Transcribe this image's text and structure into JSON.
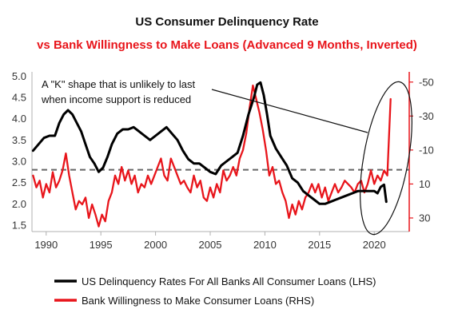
{
  "colors": {
    "lhs": "#000000",
    "rhs": "#e8151b",
    "reference": "#666666"
  },
  "chart_data": {
    "type": "line",
    "title": "US Consumer Delinquency Rate",
    "subtitle": "vs Bank Willingness to Make Loans (Advanced 9 Months, Inverted)",
    "x_ticks": [
      "1990",
      "1995",
      "2000",
      "2005",
      "2010",
      "2015",
      "2020"
    ],
    "xlim": [
      1988.7,
      2023.2
    ],
    "y_left": {
      "ticks": [
        "5.0",
        "4.5",
        "4.0",
        "3.5",
        "3.0",
        "2.5",
        "2.0",
        "1.5"
      ],
      "lim": [
        1.35,
        5.1
      ]
    },
    "y_right": {
      "ticks": [
        "-50",
        "-30",
        "-10",
        "10",
        "30"
      ],
      "lim": [
        -56,
        38
      ],
      "inverted": true
    },
    "reference_line_lhs": 2.8,
    "annotation": "A \"K\" shape that is unlikely to last when income support is reduced",
    "annotation_lines": [
      "A \"K\" shape that is unlikely to last",
      "when income support is reduced"
    ],
    "series": [
      {
        "name": "US Delinquency Rates For All Banks All Consumer Loans (LHS)",
        "axis": "left",
        "x": [
          1988.8,
          1989.3,
          1989.8,
          1990.3,
          1990.8,
          1991.2,
          1991.6,
          1992.0,
          1992.4,
          1992.8,
          1993.2,
          1993.6,
          1994.0,
          1994.4,
          1994.8,
          1995.2,
          1995.6,
          1996.0,
          1996.5,
          1997.0,
          1997.5,
          1998.0,
          1998.5,
          1999.0,
          1999.5,
          2000.0,
          2000.5,
          2001.0,
          2001.5,
          2002.0,
          2002.5,
          2003.0,
          2003.5,
          2004.0,
          2004.5,
          2005.0,
          2005.5,
          2006.0,
          2006.5,
          2007.0,
          2007.5,
          2008.0,
          2008.5,
          2009.0,
          2009.3,
          2009.6,
          2009.9,
          2010.2,
          2010.5,
          2011.0,
          2011.5,
          2012.0,
          2012.5,
          2013.0,
          2013.5,
          2014.0,
          2014.5,
          2015.0,
          2015.5,
          2016.0,
          2016.5,
          2017.0,
          2017.5,
          2018.0,
          2018.5,
          2019.0,
          2019.5,
          2020.0,
          2020.3,
          2020.6,
          2020.9,
          2021.1
        ],
        "values": [
          3.25,
          3.4,
          3.55,
          3.6,
          3.6,
          3.9,
          4.1,
          4.2,
          4.1,
          3.9,
          3.7,
          3.4,
          3.1,
          2.95,
          2.75,
          2.85,
          3.1,
          3.4,
          3.65,
          3.75,
          3.75,
          3.8,
          3.7,
          3.6,
          3.5,
          3.6,
          3.7,
          3.8,
          3.65,
          3.5,
          3.25,
          3.05,
          2.95,
          2.95,
          2.85,
          2.75,
          2.7,
          2.9,
          3.0,
          3.1,
          3.2,
          3.6,
          4.1,
          4.5,
          4.8,
          4.85,
          4.55,
          4.1,
          3.6,
          3.3,
          3.1,
          2.9,
          2.6,
          2.5,
          2.3,
          2.2,
          2.1,
          2.0,
          2.0,
          2.05,
          2.1,
          2.15,
          2.2,
          2.25,
          2.3,
          2.3,
          2.3,
          2.3,
          2.25,
          2.4,
          2.45,
          2.05
        ]
      },
      {
        "name": "Bank Willingness to Make Consumer Loans (RHS)",
        "axis": "right",
        "x": [
          1988.8,
          1989.1,
          1989.4,
          1989.7,
          1990.0,
          1990.3,
          1990.6,
          1990.9,
          1991.2,
          1991.5,
          1991.8,
          1992.1,
          1992.4,
          1992.7,
          1993.0,
          1993.3,
          1993.6,
          1993.9,
          1994.2,
          1994.5,
          1994.8,
          1995.1,
          1995.4,
          1995.7,
          1996.0,
          1996.3,
          1996.6,
          1996.9,
          1997.2,
          1997.5,
          1997.8,
          1998.1,
          1998.4,
          1998.7,
          1999.0,
          1999.3,
          1999.6,
          1999.9,
          2000.2,
          2000.5,
          2000.8,
          2001.1,
          2001.4,
          2001.7,
          2002.0,
          2002.3,
          2002.6,
          2002.9,
          2003.2,
          2003.5,
          2003.8,
          2004.1,
          2004.4,
          2004.7,
          2005.0,
          2005.3,
          2005.6,
          2005.9,
          2006.2,
          2006.5,
          2006.8,
          2007.1,
          2007.4,
          2007.7,
          2008.0,
          2008.3,
          2008.6,
          2008.9,
          2009.2,
          2009.5,
          2009.8,
          2010.1,
          2010.4,
          2010.7,
          2011.0,
          2011.3,
          2011.6,
          2011.9,
          2012.2,
          2012.5,
          2012.8,
          2013.1,
          2013.4,
          2013.7,
          2014.0,
          2014.3,
          2014.6,
          2014.9,
          2015.2,
          2015.5,
          2015.8,
          2016.1,
          2016.4,
          2016.7,
          2017.0,
          2017.3,
          2017.6,
          2017.9,
          2018.2,
          2018.5,
          2018.8,
          2019.1,
          2019.4,
          2019.7,
          2020.0,
          2020.3,
          2020.6,
          2020.9,
          2021.2,
          2021.5
        ],
        "values": [
          5,
          12,
          8,
          18,
          10,
          15,
          3,
          12,
          8,
          2,
          -8,
          5,
          15,
          25,
          20,
          22,
          18,
          30,
          22,
          28,
          35,
          28,
          32,
          20,
          15,
          5,
          10,
          0,
          8,
          2,
          10,
          5,
          15,
          10,
          12,
          5,
          10,
          5,
          0,
          -5,
          5,
          8,
          -5,
          0,
          5,
          10,
          8,
          12,
          15,
          5,
          12,
          8,
          18,
          20,
          12,
          18,
          10,
          15,
          2,
          8,
          5,
          0,
          5,
          -5,
          -10,
          -20,
          -35,
          -48,
          -40,
          -32,
          -22,
          -10,
          5,
          0,
          10,
          8,
          15,
          20,
          30,
          22,
          28,
          20,
          25,
          18,
          15,
          10,
          15,
          10,
          18,
          12,
          20,
          15,
          10,
          15,
          12,
          8,
          10,
          12,
          15,
          10,
          8,
          15,
          10,
          2,
          10,
          5,
          8,
          2,
          5,
          -40
        ]
      }
    ]
  }
}
